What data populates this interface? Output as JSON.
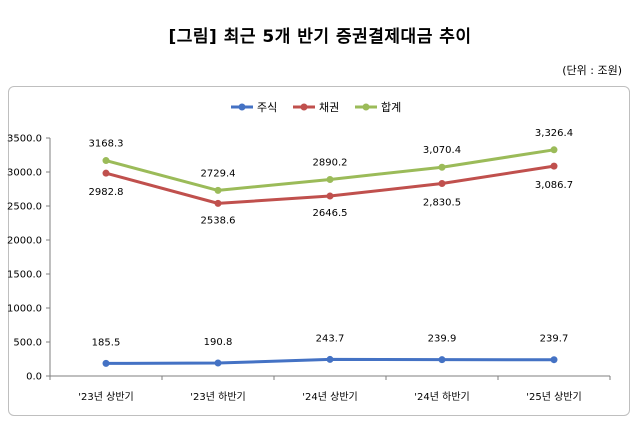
{
  "title": "[그림] 최근 5개 반기 증권결제대금 추이",
  "unit_note": "(단위 : 조원)",
  "chart_data": {
    "type": "line",
    "categories": [
      "'23년 상반기",
      "'23년 하반기",
      "'24년 상반기",
      "'24년 하반기",
      "'25년 상반기"
    ],
    "ylim": [
      0,
      3500
    ],
    "yticks": [
      0,
      500,
      1000,
      1500,
      2000,
      2500,
      3000,
      3500
    ],
    "ytick_labels": [
      "0.0",
      "500.0",
      "1000.0",
      "1500.0",
      "2000.0",
      "2500.0",
      "3000.0",
      "3500.0"
    ],
    "legend_position": "top",
    "grid": false,
    "series": [
      {
        "name": "주식",
        "color": "#4472C4",
        "values": [
          185.5,
          190.8,
          243.7,
          239.9,
          239.7
        ],
        "labels": [
          "185.5",
          "190.8",
          "243.7",
          "239.9",
          "239.7"
        ]
      },
      {
        "name": "채권",
        "color": "#C0504D",
        "values": [
          2982.8,
          2538.6,
          2646.5,
          2830.5,
          3086.7
        ],
        "labels": [
          "2982.8",
          "2538.6",
          "2646.5",
          "2,830.5",
          "3,086.7"
        ]
      },
      {
        "name": "합계",
        "color": "#9BBB59",
        "values": [
          3168.3,
          2729.4,
          2890.2,
          3070.4,
          3326.4
        ],
        "labels": [
          "3168.3",
          "2729.4",
          "2890.2",
          "3,070.4",
          "3,326.4"
        ]
      }
    ]
  }
}
